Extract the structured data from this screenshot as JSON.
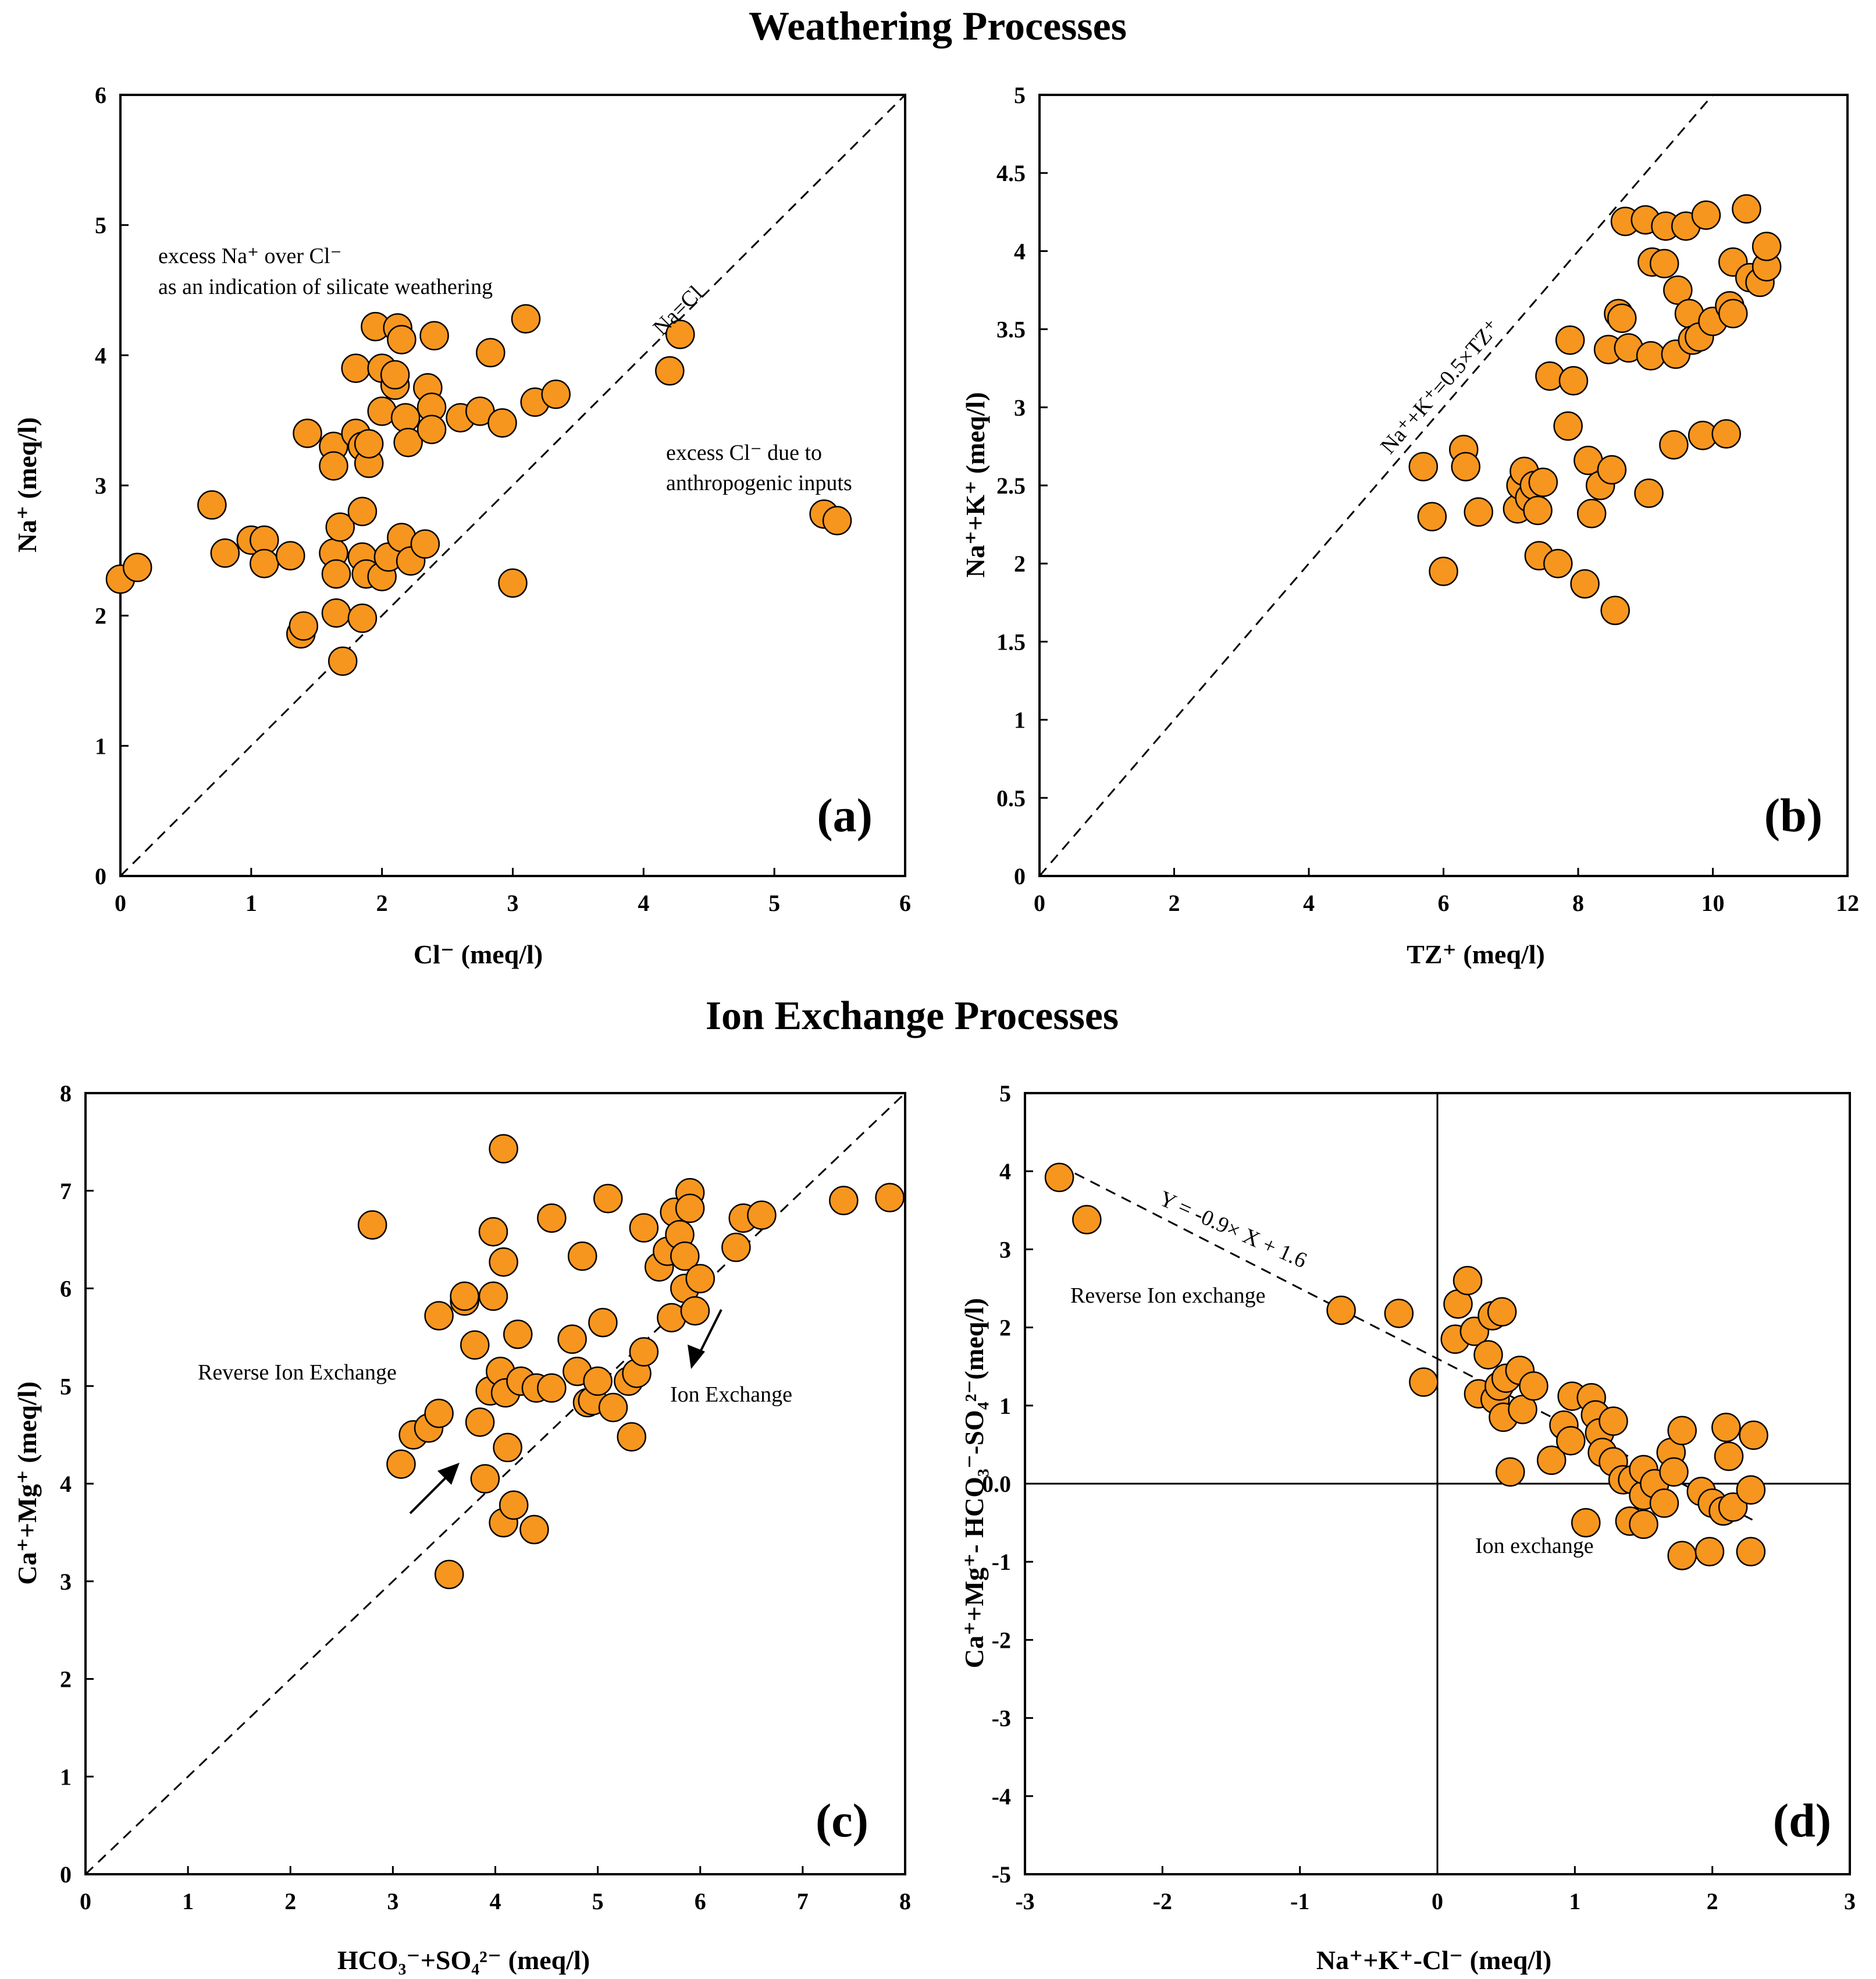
{
  "section_titles": {
    "top": "Weathering Processes",
    "bottom": "Ion Exchange Processes"
  },
  "colors": {
    "marker_fill": "#F7961E",
    "marker_stroke": "#000000",
    "axis": "#000000",
    "background": "#ffffff"
  },
  "chart_data": [
    {
      "panel": "a",
      "type": "scatter",
      "panel_label": "(a)",
      "xlabel": "Cl⁻ (meq/l)",
      "ylabel": "Na⁺ (meq/l)",
      "xlim": [
        0,
        6
      ],
      "ylim": [
        0,
        6
      ],
      "xticks": [
        0,
        1,
        2,
        3,
        4,
        5,
        6
      ],
      "yticks": [
        0,
        1,
        2,
        3,
        4,
        5,
        6
      ],
      "reference_line": {
        "label": "Na=Cl",
        "from": [
          0,
          0
        ],
        "to": [
          6,
          6
        ]
      },
      "annotations": [
        "excess Na⁺ over Cl⁻",
        "as an indication of silicate weathering",
        "excess Cl⁻ due to",
        "anthropogenic inputs"
      ],
      "points": [
        [
          0.0,
          2.28
        ],
        [
          0.13,
          2.37
        ],
        [
          0.7,
          2.85
        ],
        [
          0.8,
          2.48
        ],
        [
          1.0,
          2.58
        ],
        [
          1.1,
          2.58
        ],
        [
          1.1,
          2.4
        ],
        [
          1.3,
          2.46
        ],
        [
          1.38,
          1.86
        ],
        [
          1.4,
          1.92
        ],
        [
          1.43,
          3.4
        ],
        [
          1.63,
          3.3
        ],
        [
          1.63,
          3.15
        ],
        [
          1.63,
          2.48
        ],
        [
          1.65,
          2.32
        ],
        [
          1.65,
          2.02
        ],
        [
          1.68,
          2.68
        ],
        [
          1.7,
          1.65
        ],
        [
          1.8,
          3.9
        ],
        [
          1.8,
          3.4
        ],
        [
          1.85,
          3.3
        ],
        [
          1.85,
          2.8
        ],
        [
          1.85,
          2.45
        ],
        [
          1.85,
          1.98
        ],
        [
          1.88,
          2.32
        ],
        [
          1.9,
          3.17
        ],
        [
          1.9,
          3.32
        ],
        [
          1.95,
          4.22
        ],
        [
          2.0,
          3.57
        ],
        [
          2.0,
          3.9
        ],
        [
          2.0,
          2.3
        ],
        [
          2.05,
          2.45
        ],
        [
          2.1,
          3.77
        ],
        [
          2.1,
          3.85
        ],
        [
          2.12,
          4.21
        ],
        [
          2.15,
          4.12
        ],
        [
          2.15,
          2.6
        ],
        [
          2.18,
          3.52
        ],
        [
          2.2,
          3.33
        ],
        [
          2.22,
          2.42
        ],
        [
          2.33,
          2.55
        ],
        [
          2.35,
          3.75
        ],
        [
          2.38,
          3.6
        ],
        [
          2.38,
          3.43
        ],
        [
          2.4,
          4.15
        ],
        [
          2.6,
          3.52
        ],
        [
          2.75,
          3.57
        ],
        [
          2.83,
          4.02
        ],
        [
          2.92,
          3.48
        ],
        [
          3.0,
          2.25
        ],
        [
          3.1,
          4.28
        ],
        [
          3.17,
          3.64
        ],
        [
          3.33,
          3.7
        ],
        [
          4.2,
          3.88
        ],
        [
          4.28,
          4.16
        ],
        [
          5.38,
          2.78
        ],
        [
          5.48,
          2.73
        ]
      ]
    },
    {
      "panel": "b",
      "type": "scatter",
      "panel_label": "(b)",
      "xlabel": "TZ⁺ (meq/l)",
      "ylabel": "Na⁺+K⁺ (meq/l)",
      "xlim": [
        0,
        12
      ],
      "ylim": [
        0,
        5
      ],
      "xticks": [
        0,
        2,
        4,
        6,
        8,
        10,
        12
      ],
      "yticks": [
        0,
        0.5,
        1,
        1.5,
        2,
        2.5,
        3,
        3.5,
        4,
        4.5,
        5
      ],
      "reference_line": {
        "label": "Na⁺+K⁺=0.5×TZ⁺",
        "from": [
          0,
          0
        ],
        "to": [
          10,
          5
        ]
      },
      "points": [
        [
          5.7,
          2.62
        ],
        [
          5.83,
          2.3
        ],
        [
          6.0,
          1.95
        ],
        [
          6.3,
          2.73
        ],
        [
          6.33,
          2.62
        ],
        [
          6.52,
          2.33
        ],
        [
          7.1,
          2.35
        ],
        [
          7.15,
          2.5
        ],
        [
          7.2,
          2.59
        ],
        [
          7.28,
          2.42
        ],
        [
          7.35,
          2.5
        ],
        [
          7.4,
          2.34
        ],
        [
          7.42,
          2.05
        ],
        [
          7.48,
          2.52
        ],
        [
          7.58,
          3.2
        ],
        [
          7.7,
          2.0
        ],
        [
          7.85,
          2.88
        ],
        [
          7.88,
          3.43
        ],
        [
          7.93,
          3.17
        ],
        [
          8.1,
          1.87
        ],
        [
          8.15,
          2.66
        ],
        [
          8.2,
          2.32
        ],
        [
          8.33,
          2.5
        ],
        [
          8.45,
          3.37
        ],
        [
          8.5,
          2.6
        ],
        [
          8.55,
          1.7
        ],
        [
          8.6,
          3.6
        ],
        [
          8.65,
          3.57
        ],
        [
          8.7,
          4.19
        ],
        [
          8.75,
          3.38
        ],
        [
          9.0,
          4.2
        ],
        [
          9.05,
          2.45
        ],
        [
          9.08,
          3.33
        ],
        [
          9.1,
          3.93
        ],
        [
          9.28,
          3.92
        ],
        [
          9.3,
          4.16
        ],
        [
          9.42,
          2.76
        ],
        [
          9.45,
          3.34
        ],
        [
          9.48,
          3.75
        ],
        [
          9.6,
          4.16
        ],
        [
          9.65,
          3.6
        ],
        [
          9.7,
          3.43
        ],
        [
          9.8,
          3.45
        ],
        [
          9.85,
          2.82
        ],
        [
          9.9,
          4.23
        ],
        [
          10.0,
          3.55
        ],
        [
          10.2,
          2.83
        ],
        [
          10.25,
          3.65
        ],
        [
          10.3,
          3.6
        ],
        [
          10.3,
          3.93
        ],
        [
          10.5,
          4.27
        ],
        [
          10.55,
          3.83
        ],
        [
          10.7,
          3.8
        ],
        [
          10.8,
          3.9
        ],
        [
          10.8,
          4.03
        ]
      ]
    },
    {
      "panel": "c",
      "type": "scatter",
      "panel_label": "(c)",
      "xlabel": "HCO₃⁻+SO₄²⁻ (meq/l)",
      "ylabel": "Ca⁺+Mg⁺ (meq/l)",
      "xlim": [
        0,
        8
      ],
      "ylim": [
        0,
        8
      ],
      "xticks": [
        0,
        1,
        2,
        3,
        4,
        5,
        6,
        7,
        8
      ],
      "yticks": [
        0,
        1,
        2,
        3,
        4,
        5,
        6,
        7,
        8
      ],
      "reference_line": {
        "label": "",
        "from": [
          0,
          0
        ],
        "to": [
          8,
          8
        ]
      },
      "annotations": [
        "Reverse Ion Exchange",
        "Ion Exchange"
      ],
      "points": [
        [
          2.8,
          6.65
        ],
        [
          3.08,
          4.2
        ],
        [
          3.2,
          4.5
        ],
        [
          3.35,
          4.57
        ],
        [
          3.45,
          4.72
        ],
        [
          3.45,
          5.72
        ],
        [
          3.55,
          3.07
        ],
        [
          3.7,
          5.87
        ],
        [
          3.7,
          5.92
        ],
        [
          3.8,
          5.42
        ],
        [
          3.85,
          4.63
        ],
        [
          3.9,
          4.05
        ],
        [
          3.95,
          4.95
        ],
        [
          3.98,
          5.92
        ],
        [
          3.98,
          6.58
        ],
        [
          4.05,
          5.15
        ],
        [
          4.08,
          3.6
        ],
        [
          4.08,
          6.27
        ],
        [
          4.08,
          7.43
        ],
        [
          4.1,
          4.93
        ],
        [
          4.12,
          4.37
        ],
        [
          4.18,
          3.78
        ],
        [
          4.22,
          5.53
        ],
        [
          4.25,
          5.05
        ],
        [
          4.38,
          3.53
        ],
        [
          4.4,
          4.98
        ],
        [
          4.55,
          6.72
        ],
        [
          4.55,
          4.98
        ],
        [
          4.75,
          5.48
        ],
        [
          4.8,
          5.15
        ],
        [
          4.85,
          6.33
        ],
        [
          4.9,
          4.83
        ],
        [
          4.95,
          4.85
        ],
        [
          5.0,
          5.05
        ],
        [
          5.05,
          5.65
        ],
        [
          5.1,
          6.92
        ],
        [
          5.15,
          4.78
        ],
        [
          5.3,
          5.05
        ],
        [
          5.33,
          4.48
        ],
        [
          5.38,
          5.13
        ],
        [
          5.45,
          6.62
        ],
        [
          5.45,
          5.35
        ],
        [
          5.6,
          6.22
        ],
        [
          5.68,
          6.38
        ],
        [
          5.72,
          5.7
        ],
        [
          5.75,
          6.78
        ],
        [
          5.8,
          6.55
        ],
        [
          5.85,
          6.33
        ],
        [
          5.85,
          6.0
        ],
        [
          5.9,
          6.98
        ],
        [
          5.9,
          6.82
        ],
        [
          5.95,
          5.77
        ],
        [
          6.0,
          6.1
        ],
        [
          6.35,
          6.42
        ],
        [
          6.42,
          6.72
        ],
        [
          6.6,
          6.75
        ],
        [
          7.4,
          6.9
        ],
        [
          7.85,
          6.93
        ]
      ]
    },
    {
      "panel": "d",
      "type": "scatter",
      "panel_label": "(d)",
      "xlabel": "Na⁺+K⁺-Cl⁻ (meq/l)",
      "ylabel": "Ca⁺+Mg⁺- HCO₃⁻-SO₄²⁻(meq/l)",
      "xlim": [
        -3,
        3
      ],
      "ylim": [
        -5,
        5
      ],
      "xticks": [
        -3,
        -2,
        -1,
        0,
        1,
        2,
        3
      ],
      "yticks": [
        -5,
        -4,
        -3,
        -2,
        -1,
        0.0,
        1,
        2,
        3,
        4,
        5
      ],
      "ytick_labels": [
        "-5",
        "-4",
        "-3",
        "-2",
        "-1",
        "0.0",
        "1",
        "2",
        "3",
        "4",
        "5"
      ],
      "regression_line": {
        "label": "Y = -0.9× X + 1.6",
        "slope": -0.9,
        "intercept": 1.6,
        "x_range": [
          -2.75,
          2.3
        ]
      },
      "annotations": [
        "Reverse Ion exchange",
        "Ion exchange"
      ],
      "points": [
        [
          -2.75,
          3.92
        ],
        [
          -2.55,
          3.38
        ],
        [
          -0.7,
          2.22
        ],
        [
          -0.28,
          2.18
        ],
        [
          -0.1,
          1.3
        ],
        [
          0.13,
          1.85
        ],
        [
          0.15,
          2.3
        ],
        [
          0.22,
          2.6
        ],
        [
          0.27,
          1.95
        ],
        [
          0.3,
          1.15
        ],
        [
          0.37,
          1.65
        ],
        [
          0.4,
          2.15
        ],
        [
          0.42,
          1.08
        ],
        [
          0.45,
          1.25
        ],
        [
          0.47,
          2.2
        ],
        [
          0.48,
          0.85
        ],
        [
          0.5,
          1.35
        ],
        [
          0.53,
          0.15
        ],
        [
          0.6,
          1.45
        ],
        [
          0.62,
          0.95
        ],
        [
          0.7,
          1.25
        ],
        [
          0.83,
          0.3
        ],
        [
          0.92,
          0.75
        ],
        [
          0.97,
          0.55
        ],
        [
          0.98,
          1.12
        ],
        [
          1.08,
          -0.5
        ],
        [
          1.12,
          1.1
        ],
        [
          1.15,
          0.88
        ],
        [
          1.18,
          0.65
        ],
        [
          1.2,
          0.4
        ],
        [
          1.28,
          0.8
        ],
        [
          1.28,
          0.28
        ],
        [
          1.35,
          0.05
        ],
        [
          1.4,
          -0.48
        ],
        [
          1.42,
          0.05
        ],
        [
          1.5,
          -0.52
        ],
        [
          1.5,
          -0.15
        ],
        [
          1.5,
          0.18
        ],
        [
          1.58,
          0.0
        ],
        [
          1.65,
          -0.25
        ],
        [
          1.7,
          0.4
        ],
        [
          1.72,
          0.15
        ],
        [
          1.78,
          -0.92
        ],
        [
          1.78,
          0.68
        ],
        [
          1.92,
          -0.1
        ],
        [
          1.98,
          -0.87
        ],
        [
          2.0,
          -0.25
        ],
        [
          2.08,
          -0.35
        ],
        [
          2.1,
          0.72
        ],
        [
          2.12,
          0.35
        ],
        [
          2.15,
          -0.3
        ],
        [
          2.28,
          -0.08
        ],
        [
          2.28,
          -0.87
        ],
        [
          2.3,
          0.62
        ]
      ]
    }
  ]
}
